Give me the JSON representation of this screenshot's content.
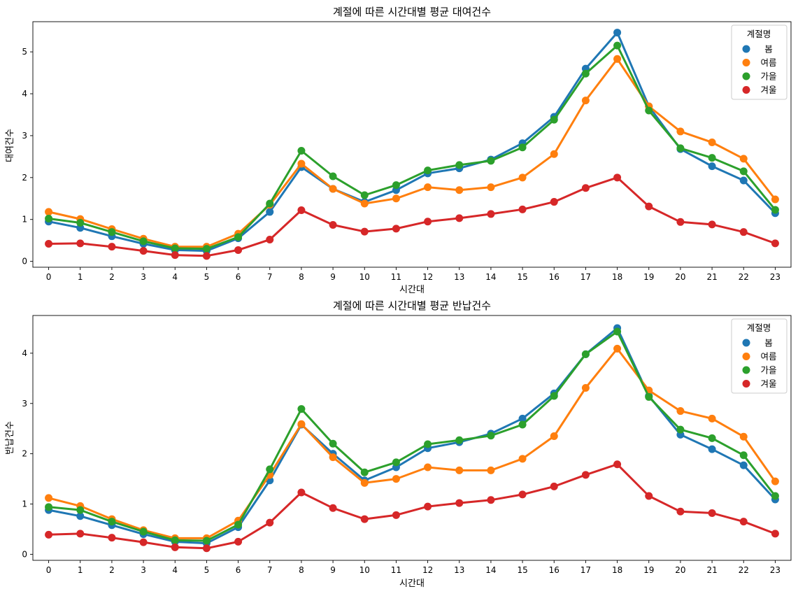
{
  "figure": {
    "background": "#ffffff"
  },
  "chart_data": [
    {
      "type": "line",
      "title": "계절에 따른 시간대별 평균 대여건수",
      "xlabel": "시간대",
      "ylabel": "대여건수",
      "categories": [
        "0",
        "1",
        "2",
        "3",
        "4",
        "5",
        "6",
        "7",
        "8",
        "9",
        "10",
        "11",
        "12",
        "13",
        "14",
        "15",
        "16",
        "17",
        "18",
        "19",
        "20",
        "21",
        "22",
        "23"
      ],
      "ylim": [
        -0.14,
        5.72
      ],
      "yticks": [
        0,
        1,
        2,
        3,
        4,
        5
      ],
      "legend": {
        "title": "계절명",
        "placement": "top-right"
      },
      "series": [
        {
          "name": "봄",
          "color": "#1f77b4",
          "values": [
            0.95,
            0.8,
            0.6,
            0.42,
            0.27,
            0.25,
            0.55,
            1.18,
            2.25,
            1.73,
            1.42,
            1.7,
            2.1,
            2.22,
            2.43,
            2.82,
            3.45,
            4.6,
            5.46,
            3.7,
            2.68,
            2.27,
            1.93,
            1.15
          ]
        },
        {
          "name": "여름",
          "color": "#ff7f0e",
          "values": [
            1.18,
            1.01,
            0.77,
            0.54,
            0.35,
            0.35,
            0.66,
            1.35,
            2.33,
            1.73,
            1.38,
            1.5,
            1.77,
            1.7,
            1.77,
            2.0,
            2.56,
            3.84,
            4.83,
            3.7,
            3.1,
            2.84,
            2.45,
            1.48
          ]
        },
        {
          "name": "가을",
          "color": "#2ca02c",
          "values": [
            1.02,
            0.92,
            0.7,
            0.48,
            0.31,
            0.3,
            0.58,
            1.38,
            2.64,
            2.03,
            1.58,
            1.82,
            2.17,
            2.3,
            2.4,
            2.72,
            3.38,
            4.48,
            5.15,
            3.6,
            2.7,
            2.47,
            2.15,
            1.23
          ]
        },
        {
          "name": "겨울",
          "color": "#d62728",
          "values": [
            0.42,
            0.43,
            0.35,
            0.25,
            0.15,
            0.13,
            0.27,
            0.52,
            1.22,
            0.87,
            0.71,
            0.78,
            0.95,
            1.03,
            1.13,
            1.24,
            1.42,
            1.75,
            2.0,
            1.31,
            0.94,
            0.88,
            0.7,
            0.43
          ]
        }
      ]
    },
    {
      "type": "line",
      "title": "계절에 따른 시간대별 평균 반납건수",
      "xlabel": "시간대",
      "ylabel": "반납건수",
      "categories": [
        "0",
        "1",
        "2",
        "3",
        "4",
        "5",
        "6",
        "7",
        "8",
        "9",
        "10",
        "11",
        "12",
        "13",
        "14",
        "15",
        "16",
        "17",
        "18",
        "19",
        "20",
        "21",
        "22",
        "23"
      ],
      "ylim": [
        -0.12,
        4.75
      ],
      "yticks": [
        0,
        1,
        2,
        3,
        4
      ],
      "legend": {
        "title": "계절명",
        "placement": "top-right"
      },
      "series": [
        {
          "name": "봄",
          "color": "#1f77b4",
          "values": [
            0.88,
            0.76,
            0.58,
            0.4,
            0.25,
            0.22,
            0.54,
            1.47,
            2.58,
            2.0,
            1.47,
            1.73,
            2.11,
            2.23,
            2.4,
            2.7,
            3.2,
            3.98,
            4.5,
            3.15,
            2.38,
            2.09,
            1.77,
            1.09
          ]
        },
        {
          "name": "여름",
          "color": "#ff7f0e",
          "values": [
            1.12,
            0.96,
            0.7,
            0.48,
            0.32,
            0.32,
            0.67,
            1.58,
            2.59,
            1.93,
            1.42,
            1.5,
            1.73,
            1.67,
            1.67,
            1.9,
            2.35,
            3.31,
            4.09,
            3.26,
            2.85,
            2.7,
            2.34,
            1.45
          ]
        },
        {
          "name": "가을",
          "color": "#2ca02c",
          "values": [
            0.94,
            0.88,
            0.65,
            0.45,
            0.28,
            0.27,
            0.59,
            1.69,
            2.89,
            2.2,
            1.63,
            1.83,
            2.19,
            2.27,
            2.36,
            2.58,
            3.15,
            3.98,
            4.43,
            3.13,
            2.48,
            2.31,
            1.97,
            1.16
          ]
        },
        {
          "name": "겨울",
          "color": "#d62728",
          "values": [
            0.39,
            0.41,
            0.33,
            0.24,
            0.14,
            0.12,
            0.25,
            0.63,
            1.23,
            0.92,
            0.7,
            0.78,
            0.95,
            1.02,
            1.08,
            1.19,
            1.35,
            1.58,
            1.79,
            1.16,
            0.85,
            0.82,
            0.65,
            0.41
          ]
        }
      ]
    }
  ]
}
